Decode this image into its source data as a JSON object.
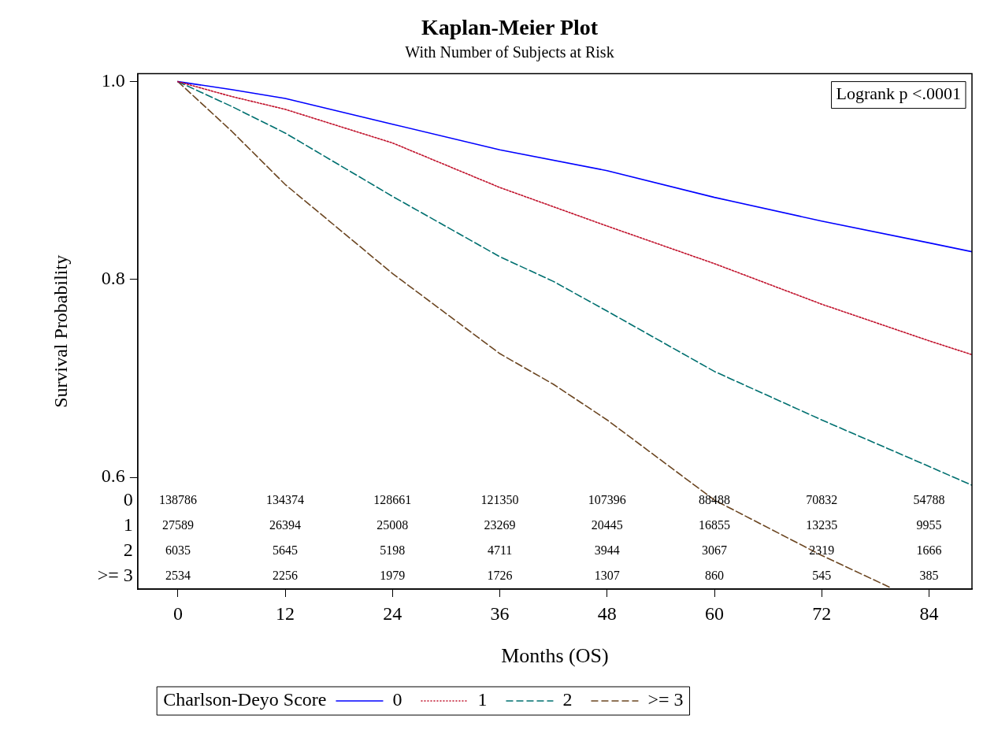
{
  "chart_data": {
    "type": "line",
    "title": "Kaplan-Meier Plot",
    "subtitle": "With Number of Subjects at Risk",
    "xlabel": "Months (OS)",
    "ylabel": "Survival Probability",
    "legend_title": "Charlson-Deyo Score",
    "legend": "bottom",
    "marker": "none",
    "xlim": [
      -4.5,
      88.8
    ],
    "xticks": [
      0,
      12,
      24,
      36,
      48,
      60,
      72,
      84
    ],
    "ylim": [
      0.487,
      1.008
    ],
    "yticks": [
      {
        "value": 0.6,
        "label": "0.6"
      },
      {
        "value": 0.8,
        "label": "0.8"
      },
      {
        "value": 1.0,
        "label": "1.0"
      }
    ],
    "series": [
      {
        "name": "0",
        "color": "#0000ff",
        "line_style": "solid",
        "x": [
          0,
          6,
          12,
          24,
          36,
          48,
          60,
          72,
          84,
          88.8
        ],
        "values": [
          1.0,
          0.992,
          0.983,
          0.957,
          0.931,
          0.91,
          0.883,
          0.859,
          0.837,
          0.828
        ]
      },
      {
        "name": "1",
        "color": "#c0102a",
        "line_style": "dotted",
        "x": [
          0,
          6,
          12,
          24,
          36,
          48,
          60,
          72,
          84,
          88.8
        ],
        "values": [
          1.0,
          0.985,
          0.972,
          0.938,
          0.893,
          0.854,
          0.816,
          0.775,
          0.738,
          0.724
        ]
      },
      {
        "name": "2",
        "color": "#007070",
        "line_style": "dashed",
        "x": [
          0,
          6,
          12,
          24,
          36,
          42,
          48,
          60,
          72,
          84,
          88.8
        ],
        "values": [
          1.0,
          0.975,
          0.948,
          0.884,
          0.823,
          0.798,
          0.768,
          0.707,
          0.658,
          0.611,
          0.592
        ]
      },
      {
        "name": ">= 3",
        "color": "#6b4520",
        "line_style": "dashed",
        "x": [
          0,
          6,
          12,
          24,
          36,
          42,
          48,
          60,
          72,
          79.8
        ],
        "values": [
          1.0,
          0.95,
          0.896,
          0.806,
          0.725,
          0.694,
          0.658,
          0.577,
          0.521,
          0.488
        ]
      }
    ],
    "annotations": [
      "Logrank p <.0001",
      "0",
      "138786",
      "134374",
      "128661",
      "121350",
      "107396",
      "88488",
      "70832",
      "54788",
      "1",
      "27589",
      "26394",
      "25008",
      "23269",
      "20445",
      "16855",
      "13235",
      "9955",
      "2",
      "6035",
      "5645",
      "5198",
      "4711",
      "3944",
      "3067",
      "2319",
      "1666",
      ">= 3",
      "2534",
      "2256",
      "1979",
      "1726",
      "1307",
      "860",
      "545",
      "385"
    ]
  }
}
